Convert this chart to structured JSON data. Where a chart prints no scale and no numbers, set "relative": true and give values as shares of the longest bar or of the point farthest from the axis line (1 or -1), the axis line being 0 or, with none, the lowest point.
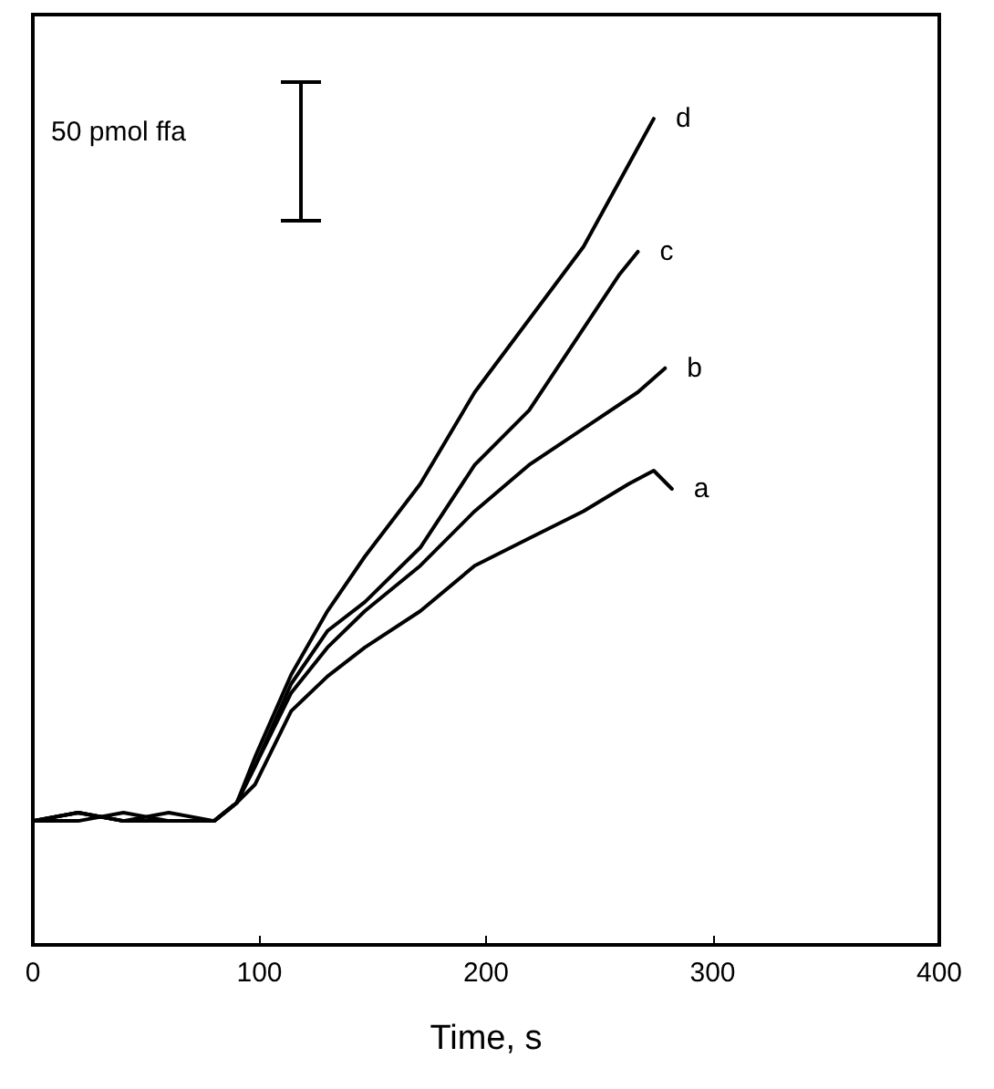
{
  "chart_data": {
    "type": "line",
    "relative": true,
    "xlabel": "Time, s",
    "xlim": [
      0,
      400
    ],
    "xticks": [
      0,
      100,
      200,
      300,
      400
    ],
    "grid": false,
    "legend": false,
    "marker": "none",
    "line_style": "solid",
    "annotations": [
      "50 pmol ffa"
    ],
    "series": [
      {
        "name": "a",
        "color": "#000000",
        "x": [
          0,
          20,
          40,
          60,
          80,
          90,
          98,
          114,
          130,
          146.5,
          171,
          195,
          219,
          243,
          263,
          274,
          282
        ],
        "values": [
          0.15,
          0.16,
          0.15,
          0.15,
          0.15,
          0.172,
          0.194,
          0.283,
          0.325,
          0.36,
          0.404,
          0.459,
          0.492,
          0.525,
          0.558,
          0.574,
          0.552
        ]
      },
      {
        "name": "b",
        "color": "#000000",
        "x": [
          0,
          20,
          40,
          60,
          80,
          90,
          98,
          114,
          130,
          146.5,
          171,
          195,
          219,
          243,
          267,
          279
        ],
        "values": [
          0.15,
          0.15,
          0.16,
          0.15,
          0.15,
          0.172,
          0.216,
          0.305,
          0.36,
          0.404,
          0.459,
          0.525,
          0.581,
          0.625,
          0.669,
          0.698
        ]
      },
      {
        "name": "c",
        "color": "#000000",
        "x": [
          0,
          20,
          40,
          60,
          80,
          90,
          98,
          114,
          130,
          146.5,
          171,
          195,
          219,
          243,
          259,
          267
        ],
        "values": [
          0.15,
          0.16,
          0.15,
          0.16,
          0.15,
          0.172,
          0.216,
          0.316,
          0.38,
          0.415,
          0.481,
          0.581,
          0.647,
          0.746,
          0.812,
          0.839
        ]
      },
      {
        "name": "d",
        "color": "#000000",
        "x": [
          0,
          20,
          40,
          60,
          80,
          90,
          98,
          114,
          130,
          146.5,
          171,
          195,
          219,
          243,
          263,
          274
        ],
        "values": [
          0.15,
          0.16,
          0.15,
          0.15,
          0.15,
          0.172,
          0.227,
          0.327,
          0.404,
          0.47,
          0.558,
          0.669,
          0.757,
          0.845,
          0.945,
          1.0
        ]
      }
    ]
  }
}
